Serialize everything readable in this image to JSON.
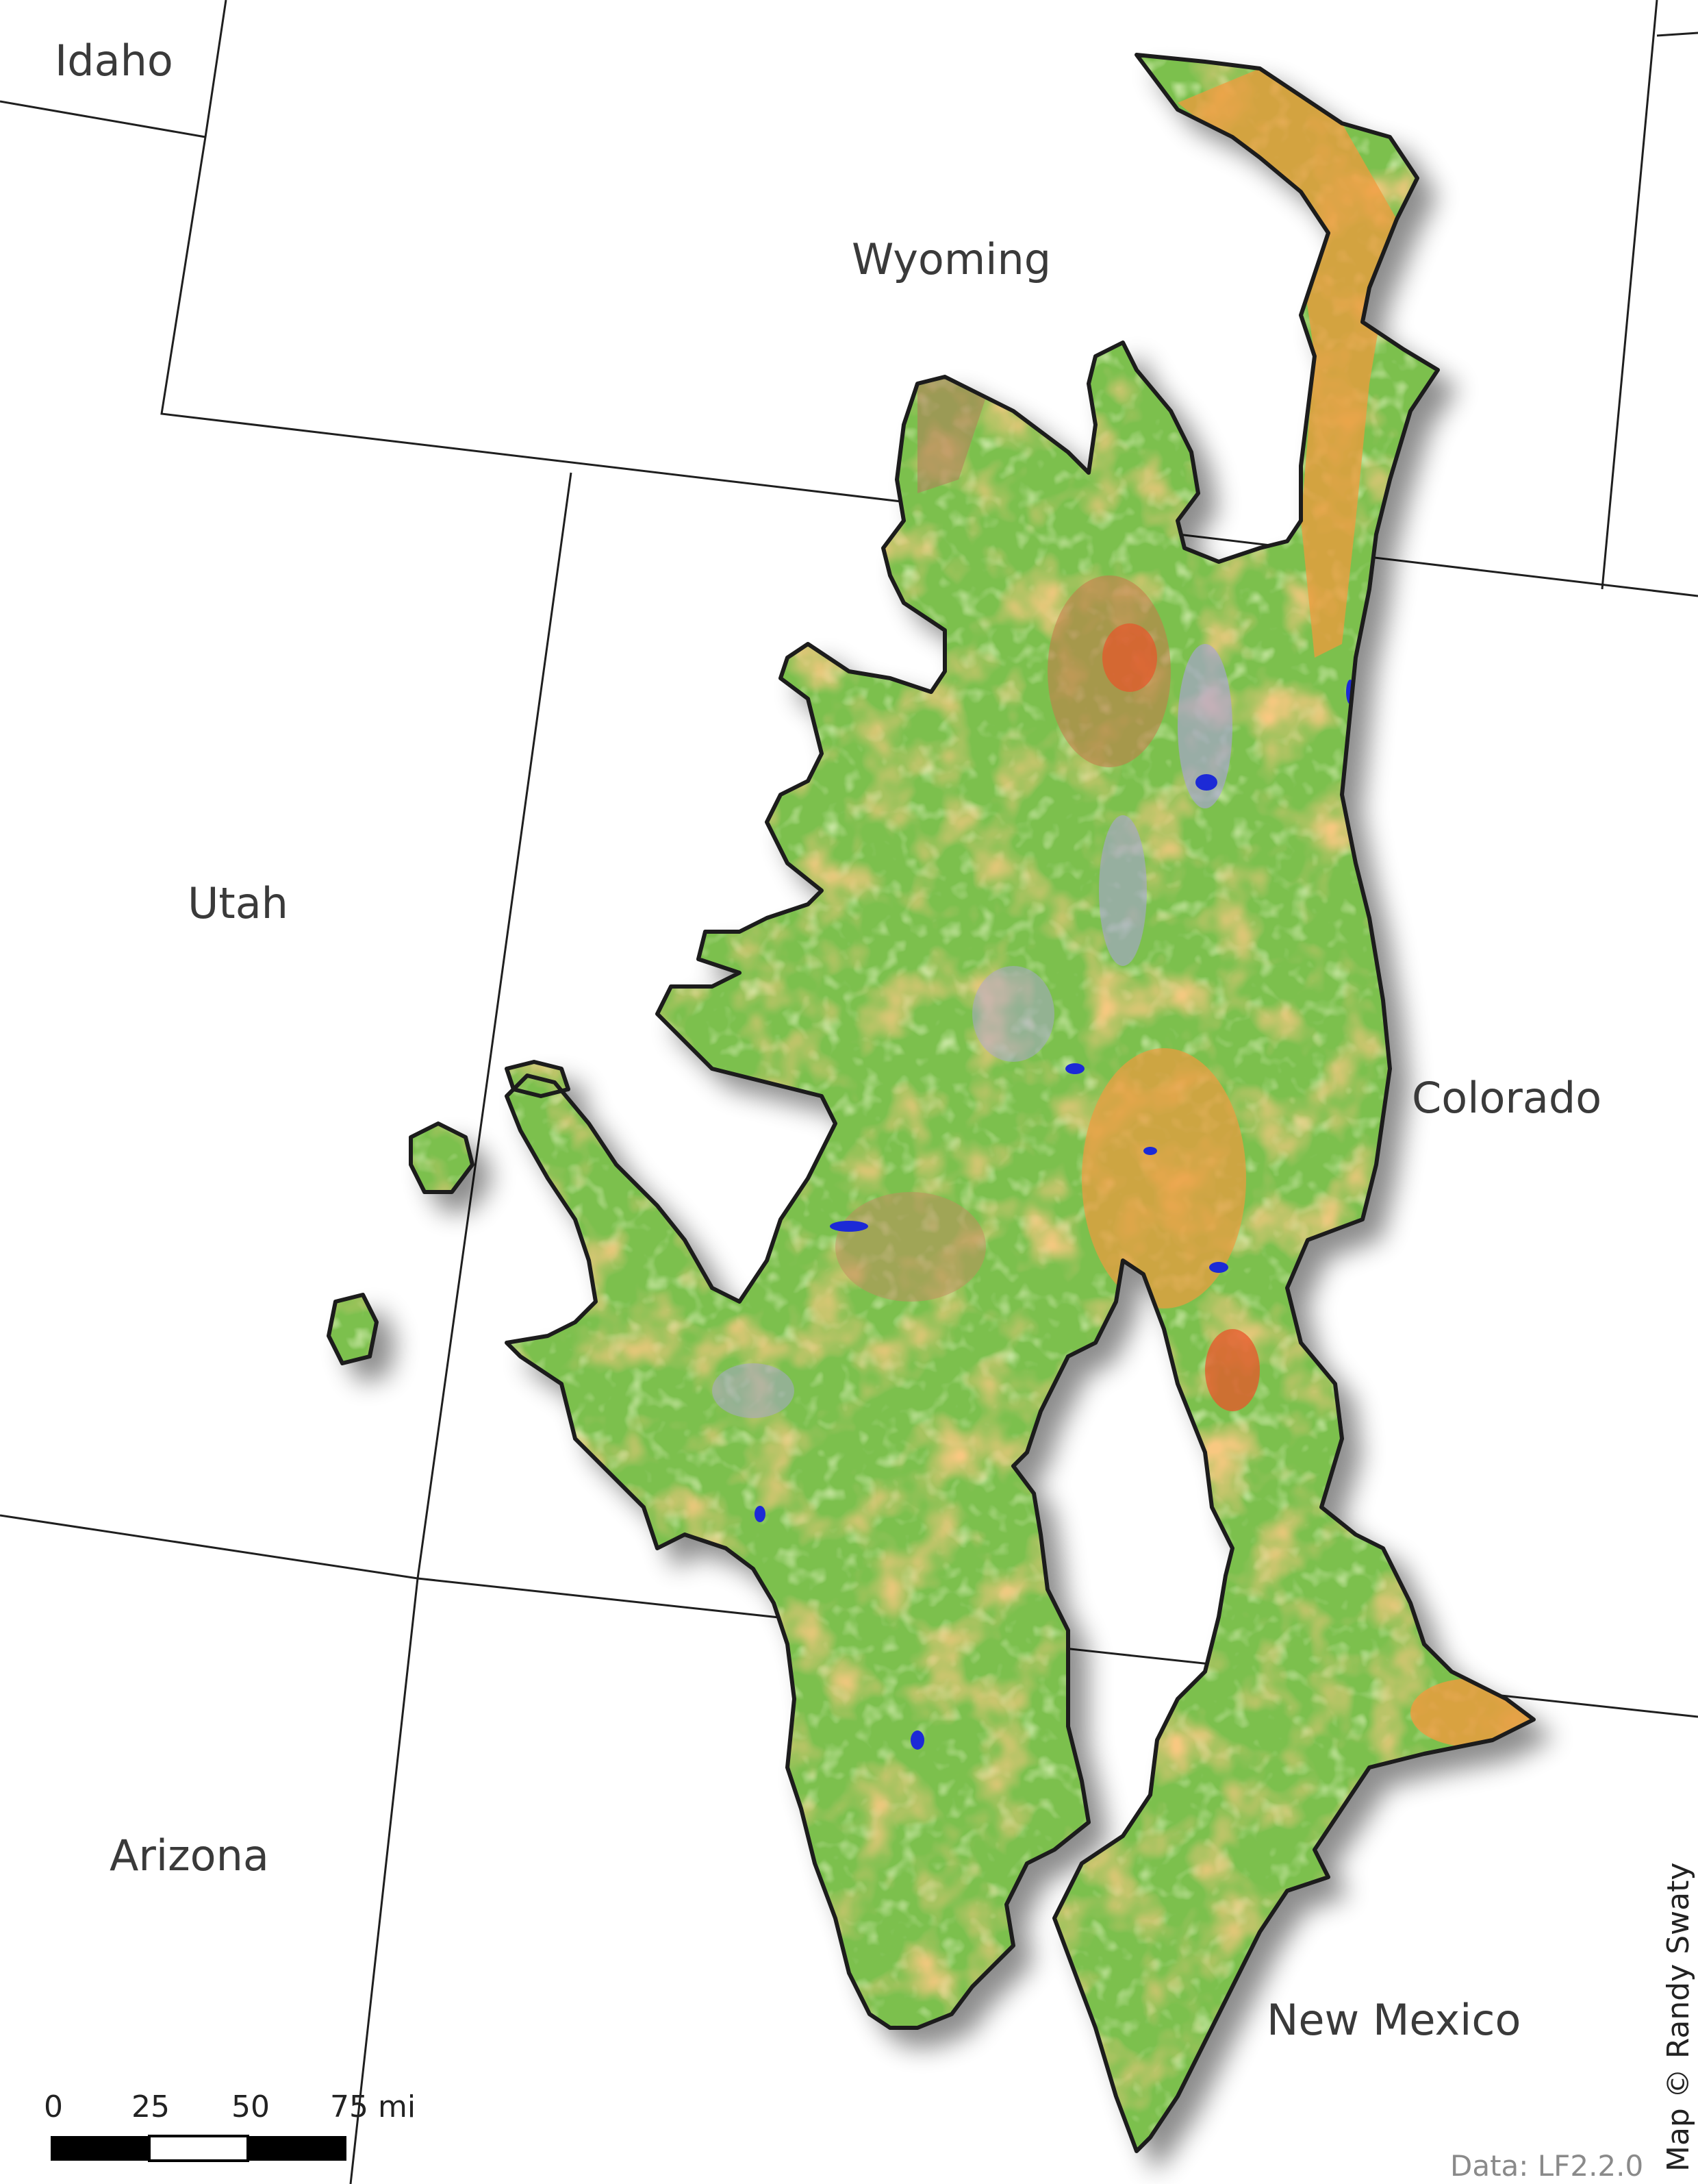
{
  "map": {
    "states": {
      "idaho": "Idaho",
      "wyoming": "Wyoming",
      "utah": "Utah",
      "colorado": "Colorado",
      "arizona": "Arizona",
      "new_mexico": "New Mexico"
    },
    "scale_bar": {
      "ticks": [
        "0",
        "25",
        "50",
        "75 mi"
      ]
    },
    "credit": "Map © Randy Swaty",
    "data_source": "Data: LF2.2.0",
    "colors": {
      "background": "#ffffff",
      "state_border": "#1f1f1f",
      "vegetation_green": "#7cc04e",
      "vegetation_light_green": "#a6d86c",
      "orange": "#f09a3e",
      "red_orange": "#e8542a",
      "brown": "#b0805a",
      "lavender": "#a9a3d6",
      "water_blue": "#1e2bd6"
    }
  }
}
